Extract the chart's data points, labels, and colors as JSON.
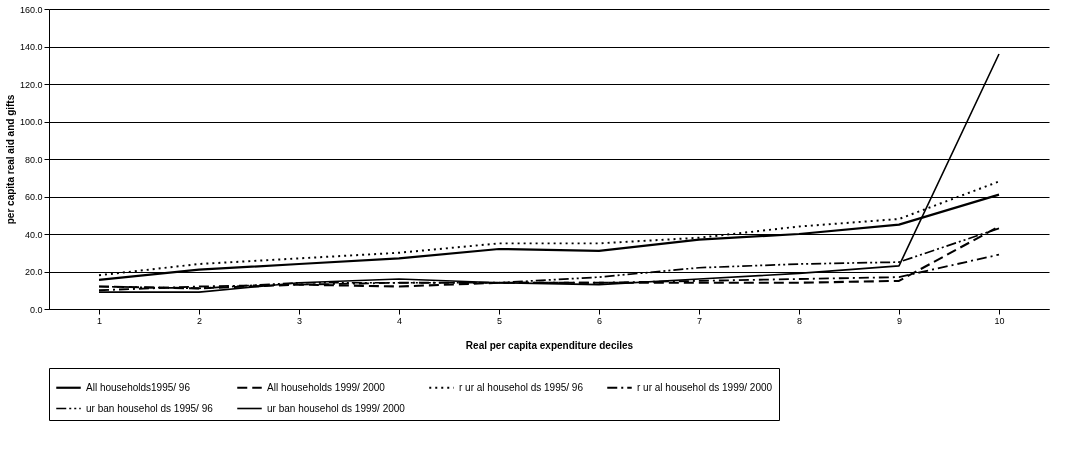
{
  "chart_data": {
    "type": "line",
    "xlabel": "Real per capita expenditure deciles",
    "ylabel": "per capita real aid and gifts",
    "categories": [
      "1",
      "2",
      "3",
      "4",
      "5",
      "6",
      "7",
      "8",
      "9",
      "10"
    ],
    "ylim": [
      0,
      160
    ],
    "yticks": [
      {
        "value": 0,
        "label": "0.0"
      },
      {
        "value": 20,
        "label": "20.0"
      },
      {
        "value": 40,
        "label": "40.0"
      },
      {
        "value": 60,
        "label": "60.0"
      },
      {
        "value": 80,
        "label": "80.0"
      },
      {
        "value": 100,
        "label": "100.0"
      },
      {
        "value": 120,
        "label": "120.0"
      },
      {
        "value": 140,
        "label": "140.0"
      },
      {
        "value": 160,
        "label": "160.0"
      }
    ],
    "grid": "y",
    "legend": "bottom",
    "marker": "none",
    "series": [
      {
        "name": "All households1995/ 96",
        "color": "#000000",
        "line_style": "solid",
        "values": [
          15.5,
          21,
          24,
          27,
          32,
          31,
          37,
          40,
          45,
          61
        ]
      },
      {
        "name": "All households 1999/ 2000",
        "color": "#000000",
        "line_style": "dashed",
        "values": [
          12,
          11,
          13,
          12,
          14,
          14,
          14,
          14,
          15,
          44
        ]
      },
      {
        "name": "r ur al househol ds 1995/ 96",
        "color": "#000000",
        "line_style": "dotted",
        "values": [
          18,
          24,
          27,
          30,
          35,
          35,
          38,
          44,
          48,
          68
        ]
      },
      {
        "name": "r ur al househol ds 1999/ 2000",
        "color": "#000000",
        "line_style": "dashdot",
        "values": [
          10,
          12,
          13,
          14,
          14,
          14,
          15,
          16,
          17,
          29
        ]
      },
      {
        "name": "ur ban househol ds 1995/ 96",
        "color": "#000000",
        "line_style": "dashdotdot",
        "values": [
          12,
          11,
          14,
          14,
          14,
          17,
          22,
          24,
          25,
          43
        ]
      },
      {
        "name": "ur ban househol ds 1999/ 2000",
        "color": "#000000",
        "line_style": "solid",
        "values": [
          9,
          9,
          14,
          16,
          14,
          13,
          16,
          19,
          23,
          136
        ]
      }
    ]
  }
}
